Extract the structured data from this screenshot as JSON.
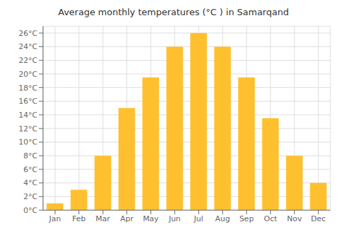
{
  "chart_data": {
    "type": "bar",
    "title": "Average monthly temperatures (°C ) in Samarqand",
    "categories": [
      "Jan",
      "Feb",
      "Mar",
      "Apr",
      "May",
      "Jun",
      "Jul",
      "Aug",
      "Sep",
      "Oct",
      "Nov",
      "Dec"
    ],
    "values": [
      1,
      3,
      8,
      15,
      19.5,
      24,
      26,
      24,
      19.5,
      13.5,
      8,
      4
    ],
    "color": "#FFC030",
    "ylim": [
      0,
      27
    ],
    "yticks": [
      {
        "value": 0,
        "label": "0°C"
      },
      {
        "value": 2,
        "label": "2°C"
      },
      {
        "value": 4,
        "label": "4°C"
      },
      {
        "value": 6,
        "label": "6°C"
      },
      {
        "value": 8,
        "label": "8°C"
      },
      {
        "value": 10,
        "label": "10°C"
      },
      {
        "value": 12,
        "label": "12°C"
      },
      {
        "value": 14,
        "label": "14°C"
      },
      {
        "value": 16,
        "label": "16°C"
      },
      {
        "value": 18,
        "label": "18°C"
      },
      {
        "value": 20,
        "label": "20°C"
      },
      {
        "value": 22,
        "label": "22°C"
      },
      {
        "value": 24,
        "label": "24°C"
      },
      {
        "value": 26,
        "label": "26°C"
      }
    ],
    "grid": true
  }
}
